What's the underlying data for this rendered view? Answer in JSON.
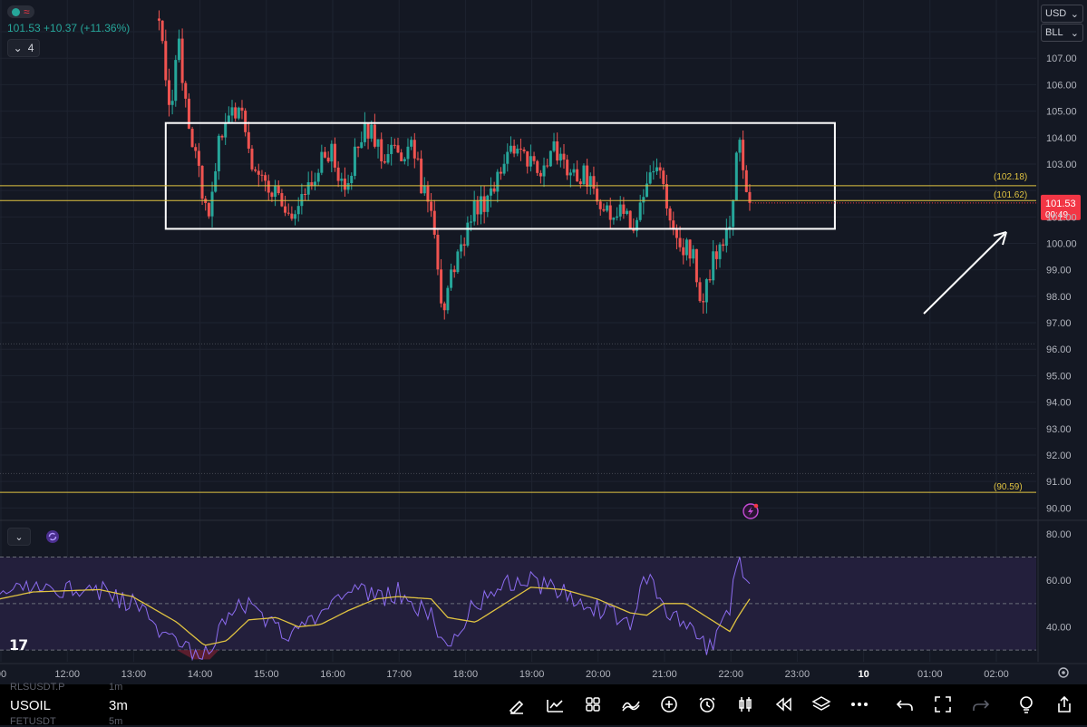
{
  "header": {
    "price": "101.53",
    "change": "+10.37",
    "change_pct": "(+11.36%)",
    "collapse_count": "4"
  },
  "selectors": {
    "currency": "USD",
    "unit": "BLL"
  },
  "bottom_bar": {
    "symbol": "USOIL",
    "timeframe": "3m",
    "watchlist_prev": "RLSUSDT.P",
    "watchlist_prev_tf": "1m",
    "watchlist_next": "FETUSDT",
    "watchlist_next_tf": "5m",
    "tools": [
      "draw-icon",
      "chart-type-icon",
      "layout-grid-icon",
      "indicators-icon",
      "add-icon",
      "alert-icon",
      "candle-icon",
      "replay-icon",
      "layers-icon",
      "more-icon",
      "undo-icon",
      "fullscreen-icon",
      "redo-icon",
      "ideas-icon",
      "share-icon"
    ]
  },
  "colors": {
    "background": "#141823",
    "up": "#26a69a",
    "down": "#ef5350",
    "level_line": "#e0c341",
    "rsi": "#8c6cf0",
    "rsi_ma": "#e0c341",
    "price_label": "#f23645"
  },
  "chart_data": [
    {
      "type": "candlestick",
      "symbol": "USOIL",
      "interval": "3m",
      "y_range": [
        89.6,
        109.2
      ],
      "y_ticks": [
        90,
        91,
        92,
        93,
        94,
        95,
        96,
        97,
        98,
        99,
        100,
        101,
        102,
        103,
        104,
        105,
        106,
        107,
        108
      ],
      "x_ticks": [
        "00",
        "12:00",
        "13:00",
        "14:00",
        "15:00",
        "16:00",
        "17:00",
        "18:00",
        "19:00",
        "20:00",
        "21:00",
        "22:00",
        "23:00",
        "10",
        "01:00",
        "02:00"
      ],
      "ohlc_keypoints": [
        {
          "t": "13:24",
          "close": 108.5
        },
        {
          "t": "13:33",
          "close": 104.8
        },
        {
          "t": "13:42",
          "close": 107.6
        },
        {
          "t": "13:50",
          "close": 104.5
        },
        {
          "t": "14:00",
          "close": 103.0
        },
        {
          "t": "14:08",
          "close": 100.6
        },
        {
          "t": "14:16",
          "close": 103.4
        },
        {
          "t": "14:26",
          "close": 104.5
        },
        {
          "t": "14:38",
          "close": 105.6
        },
        {
          "t": "14:45",
          "close": 103.6
        },
        {
          "t": "14:55",
          "close": 102.4
        },
        {
          "t": "15:08",
          "close": 102.0
        },
        {
          "t": "15:25",
          "close": 101.0
        },
        {
          "t": "15:40",
          "close": 102.4
        },
        {
          "t": "15:58",
          "close": 103.6
        },
        {
          "t": "16:12",
          "close": 102.0
        },
        {
          "t": "16:25",
          "close": 103.8
        },
        {
          "t": "16:35",
          "close": 104.5
        },
        {
          "t": "16:45",
          "close": 103.2
        },
        {
          "t": "16:55",
          "close": 104.0
        },
        {
          "t": "17:05",
          "close": 103.2
        },
        {
          "t": "17:12",
          "close": 104.1
        },
        {
          "t": "17:22",
          "close": 102.0
        },
        {
          "t": "17:32",
          "close": 100.8
        },
        {
          "t": "17:40",
          "close": 97.6
        },
        {
          "t": "17:50",
          "close": 99.0
        },
        {
          "t": "18:00",
          "close": 100.2
        },
        {
          "t": "18:10",
          "close": 101.3
        },
        {
          "t": "18:25",
          "close": 101.8
        },
        {
          "t": "18:38",
          "close": 103.1
        },
        {
          "t": "18:52",
          "close": 103.8
        },
        {
          "t": "19:05",
          "close": 102.6
        },
        {
          "t": "19:20",
          "close": 103.7
        },
        {
          "t": "19:35",
          "close": 102.5
        },
        {
          "t": "19:50",
          "close": 102.6
        },
        {
          "t": "20:00",
          "close": 101.9
        },
        {
          "t": "20:10",
          "close": 101.2
        },
        {
          "t": "20:25",
          "close": 101.0
        },
        {
          "t": "20:35",
          "close": 100.8
        },
        {
          "t": "20:45",
          "close": 102.0
        },
        {
          "t": "20:55",
          "close": 103.0
        },
        {
          "t": "21:05",
          "close": 101.4
        },
        {
          "t": "21:15",
          "close": 99.6
        },
        {
          "t": "21:25",
          "close": 99.9
        },
        {
          "t": "21:35",
          "close": 97.6
        },
        {
          "t": "21:45",
          "close": 99.6
        },
        {
          "t": "21:55",
          "close": 100.3
        },
        {
          "t": "22:02",
          "close": 100.6
        },
        {
          "t": "22:07",
          "close": 104.1
        },
        {
          "t": "22:12",
          "close": 102.8
        },
        {
          "t": "22:18",
          "close": 101.53
        }
      ],
      "levels": [
        {
          "value": 102.18,
          "label": "(102.18)"
        },
        {
          "value": 101.62,
          "label": "(101.62)"
        },
        {
          "value": 90.59,
          "label": "(90.59)"
        }
      ],
      "last_price": {
        "value": 101.53,
        "label": "101.53",
        "countdown": "00:49"
      },
      "range_box": {
        "from": "13:30",
        "to": "23:35",
        "top": 104.55,
        "bottom": 100.55
      },
      "grid": true
    },
    {
      "type": "line",
      "name": "RSI",
      "y_range": [
        25,
        85
      ],
      "y_ticks": [
        40,
        60,
        80
      ],
      "bands": [
        30,
        50,
        70
      ],
      "series_keypoints": [
        {
          "t": "11:00",
          "rsi": 52,
          "ma": 52
        },
        {
          "t": "11:30",
          "rsi": 58,
          "ma": 55
        },
        {
          "t": "12:30",
          "rsi": 56,
          "ma": 56
        },
        {
          "t": "13:00",
          "rsi": 50,
          "ma": 53
        },
        {
          "t": "13:40",
          "rsi": 32,
          "ma": 42
        },
        {
          "t": "14:05",
          "rsi": 28,
          "ma": 32
        },
        {
          "t": "14:25",
          "rsi": 45,
          "ma": 34
        },
        {
          "t": "14:45",
          "rsi": 50,
          "ma": 43
        },
        {
          "t": "15:10",
          "rsi": 40,
          "ma": 44
        },
        {
          "t": "15:30",
          "rsi": 36,
          "ma": 40
        },
        {
          "t": "15:50",
          "rsi": 48,
          "ma": 41
        },
        {
          "t": "16:15",
          "rsi": 58,
          "ma": 47
        },
        {
          "t": "16:40",
          "rsi": 52,
          "ma": 52
        },
        {
          "t": "17:00",
          "rsi": 55,
          "ma": 53
        },
        {
          "t": "17:30",
          "rsi": 45,
          "ma": 52
        },
        {
          "t": "17:45",
          "rsi": 32,
          "ma": 44
        },
        {
          "t": "18:10",
          "rsi": 50,
          "ma": 42
        },
        {
          "t": "18:40",
          "rsi": 58,
          "ma": 51
        },
        {
          "t": "19:00",
          "rsi": 60,
          "ma": 57
        },
        {
          "t": "19:30",
          "rsi": 55,
          "ma": 56
        },
        {
          "t": "20:00",
          "rsi": 48,
          "ma": 52
        },
        {
          "t": "20:30",
          "rsi": 42,
          "ma": 46
        },
        {
          "t": "20:45",
          "rsi": 62,
          "ma": 45
        },
        {
          "t": "21:00",
          "rsi": 48,
          "ma": 50
        },
        {
          "t": "21:20",
          "rsi": 40,
          "ma": 50
        },
        {
          "t": "21:40",
          "rsi": 30,
          "ma": 44
        },
        {
          "t": "22:00",
          "rsi": 48,
          "ma": 38
        },
        {
          "t": "22:07",
          "rsi": 68,
          "ma": 44
        },
        {
          "t": "22:18",
          "rsi": 55,
          "ma": 52
        }
      ]
    }
  ]
}
